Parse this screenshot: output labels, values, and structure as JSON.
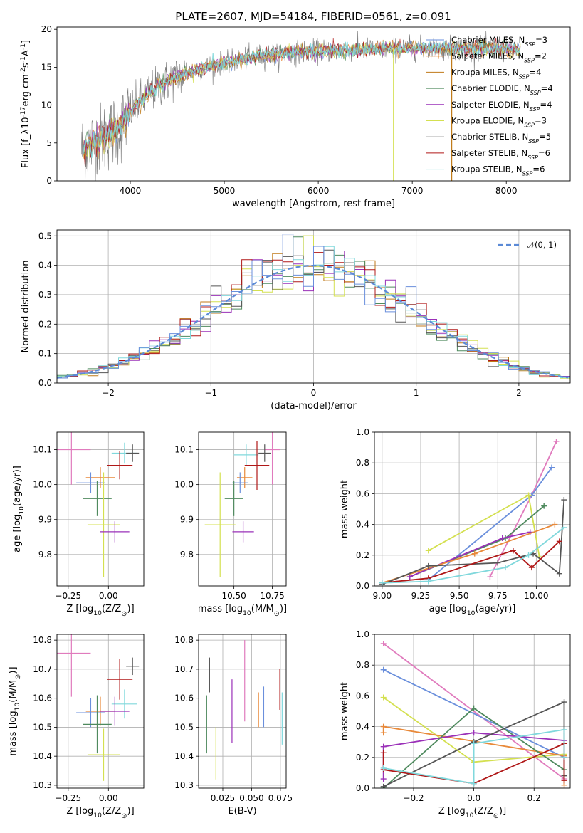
{
  "figure_title": "PLATE=2607, MJD=54184, FIBERID=0561, z=0.091",
  "colors": {
    "Chabrier MILES": "#6a8fdc",
    "Salpeter MILES": "#e8893a",
    "Kroupa MILES": "#c07a18",
    "Chabrier ELODIE": "#4f8a5e",
    "Salpeter ELODIE": "#9a30b8",
    "Kroupa ELODIE": "#d4e050",
    "Chabrier STELIB": "#555555",
    "Salpeter STELIB": "#b01818",
    "Kroupa STELIB": "#80d8dc",
    "Pink": "#e07bbd",
    "MILES2": "#6a8fdc",
    "normal": "#5b8ad6"
  },
  "chart_data": [
    {
      "id": "spectrum",
      "type": "line",
      "xlabel": "wavelength [Angstrom, rest frame]",
      "ylabel": "Flux [f_λ10^-17 erg cm^-2 s^-1 A^-1]",
      "xlim": [
        3220,
        8680
      ],
      "ylim": [
        0,
        20.3
      ],
      "xticks": [
        4000,
        5000,
        6000,
        7000,
        8000
      ],
      "yticks": [
        0,
        5,
        10,
        15,
        20
      ],
      "grid": false,
      "legend_position": "right",
      "legend": [
        {
          "name": "Chabrier MILES",
          "nssp": "3"
        },
        {
          "name": "Salpeter MILES",
          "nssp": "2"
        },
        {
          "name": "Kroupa MILES",
          "nssp": "4"
        },
        {
          "name": "Chabrier ELODIE",
          "nssp": "4"
        },
        {
          "name": "Salpeter ELODIE",
          "nssp": "4"
        },
        {
          "name": "Kroupa ELODIE",
          "nssp": "3"
        },
        {
          "name": "Chabrier STELIB",
          "nssp": "5"
        },
        {
          "name": "Salpeter STELIB",
          "nssp": "6"
        },
        {
          "name": "Kroupa STELIB",
          "nssp": "6"
        }
      ],
      "continuum": {
        "x": [
          3500,
          3700,
          3900,
          4000,
          4150,
          4300,
          4500,
          4700,
          4900,
          5100,
          5300,
          5500,
          5800,
          6100,
          6400,
          6700,
          7000,
          7300,
          7600,
          7900,
          8100
        ],
        "y": [
          4.2,
          5.6,
          7.2,
          9.2,
          11.0,
          12.5,
          13.8,
          14.6,
          15.3,
          15.8,
          16.3,
          16.7,
          17.0,
          17.2,
          17.3,
          17.4,
          17.5,
          17.5,
          17.5,
          17.4,
          17.3
        ]
      },
      "glitches": [
        {
          "x": 6800,
          "ymin": 0,
          "ymax": 17.5,
          "series": "Kroupa ELODIE"
        },
        {
          "x": 7420,
          "ymin": 0,
          "ymax": 17.5,
          "series": "Kroupa MILES"
        }
      ]
    },
    {
      "id": "residuals",
      "type": "histogram",
      "xlabel": "(data-model)/error",
      "ylabel": "Normed distribution",
      "xlim": [
        -2.5,
        2.5
      ],
      "ylim": [
        0,
        0.52
      ],
      "xticks": [
        -2,
        -1,
        0,
        1,
        2
      ],
      "yticks": [
        0,
        0.1,
        0.2,
        0.3,
        0.4,
        0.5
      ],
      "grid": true,
      "legend_position": "top-right",
      "legend": [
        {
          "name": "𝒩(0, 1)"
        }
      ],
      "bin_width": 0.1
    },
    {
      "id": "age_vs_Z",
      "type": "errorbar",
      "xlabel": "Z [log10(Z/Z⊙)]",
      "ylabel": "age  [log10(age/yr)]",
      "xlim": [
        -0.32,
        0.22
      ],
      "ylim": [
        9.71,
        10.15
      ],
      "xticks": [
        -0.25,
        0.0
      ],
      "yticks": [
        9.8,
        9.9,
        10.0,
        10.1
      ],
      "grid": true,
      "points": [
        {
          "series": "Pink",
          "x": -0.23,
          "xerr": 0.12,
          "y": 10.1,
          "yerr": 0.1
        },
        {
          "series": "Kroupa STELIB",
          "x": 0.1,
          "xerr": 0.08,
          "y": 10.09,
          "yerr": 0.03
        },
        {
          "series": "Chabrier STELIB",
          "x": 0.15,
          "xerr": 0.04,
          "y": 10.09,
          "yerr": 0.025
        },
        {
          "series": "Salpeter STELIB",
          "x": 0.07,
          "xerr": 0.08,
          "y": 10.055,
          "yerr": 0.04
        },
        {
          "series": "Salpeter MILES",
          "x": -0.05,
          "xerr": 0.09,
          "y": 10.02,
          "yerr": 0.03
        },
        {
          "series": "MILES2",
          "x": -0.11,
          "xerr": 0.09,
          "y": 10.005,
          "yerr": 0.03
        },
        {
          "series": "Chabrier ELODIE",
          "x": -0.07,
          "xerr": 0.09,
          "y": 9.96,
          "yerr": 0.05
        },
        {
          "series": "Kroupa ELODIE",
          "x": -0.03,
          "xerr": 0.1,
          "y": 9.885,
          "yerr": 0.15
        },
        {
          "series": "Salpeter ELODIE",
          "x": 0.04,
          "xerr": 0.09,
          "y": 9.865,
          "yerr": 0.03
        }
      ]
    },
    {
      "id": "age_vs_mass",
      "type": "errorbar",
      "xlabel": "mass [log10(M/M⊙)]",
      "ylabel": "",
      "xlim": [
        10.27,
        10.84
      ],
      "ylim": [
        9.71,
        10.15
      ],
      "xticks": [
        10.5,
        10.75
      ],
      "yticks": [
        9.8,
        9.9,
        10.0,
        10.1
      ],
      "grid": true,
      "points": [
        {
          "series": "Pink",
          "x": 10.75,
          "xerr": 0.05,
          "y": 10.1,
          "yerr": 0.1
        },
        {
          "series": "Kroupa STELIB",
          "x": 10.58,
          "xerr": 0.08,
          "y": 10.085,
          "yerr": 0.03
        },
        {
          "series": "Chabrier STELIB",
          "x": 10.7,
          "xerr": 0.04,
          "y": 10.09,
          "yerr": 0.025
        },
        {
          "series": "Salpeter STELIB",
          "x": 10.65,
          "xerr": 0.08,
          "y": 10.055,
          "yerr": 0.07
        },
        {
          "series": "Salpeter MILES",
          "x": 10.57,
          "xerr": 0.05,
          "y": 10.02,
          "yerr": 0.03
        },
        {
          "series": "MILES2",
          "x": 10.54,
          "xerr": 0.05,
          "y": 10.005,
          "yerr": 0.03
        },
        {
          "series": "Chabrier ELODIE",
          "x": 10.5,
          "xerr": 0.06,
          "y": 9.96,
          "yerr": 0.05
        },
        {
          "series": "Kroupa ELODIE",
          "x": 10.41,
          "xerr": 0.1,
          "y": 9.885,
          "yerr": 0.15
        },
        {
          "series": "Salpeter ELODIE",
          "x": 10.56,
          "xerr": 0.07,
          "y": 9.865,
          "yerr": 0.03
        }
      ]
    },
    {
      "id": "weight_vs_age",
      "type": "line",
      "xlabel": "age  [log10(age/yr)]",
      "ylabel": "mass weight",
      "xlim": [
        8.95,
        10.22
      ],
      "ylim": [
        0,
        1.0
      ],
      "xticks": [
        9.0,
        9.25,
        9.5,
        9.75,
        10.0
      ],
      "yticks": [
        0,
        0.2,
        0.4,
        0.6,
        0.8,
        1.0
      ],
      "grid": true,
      "series": [
        {
          "name": "Pink",
          "x": [
            9.7,
            9.97,
            10.13
          ],
          "y": [
            0.06,
            0.59,
            0.94
          ]
        },
        {
          "name": "MILES2",
          "x": [
            9.3,
            9.97,
            10.1
          ],
          "y": [
            0.04,
            0.59,
            0.77
          ]
        },
        {
          "name": "Kroupa ELODIE",
          "x": [
            9.3,
            9.95,
            10.02
          ],
          "y": [
            0.23,
            0.59,
            0.19
          ]
        },
        {
          "name": "Chabrier ELODIE",
          "x": [
            9.18,
            9.8,
            10.05
          ],
          "y": [
            0.06,
            0.31,
            0.52
          ]
        },
        {
          "name": "Salpeter ELODIE",
          "x": [
            9.18,
            9.78,
            9.96
          ],
          "y": [
            0.06,
            0.31,
            0.35
          ]
        },
        {
          "name": "Salpeter MILES",
          "x": [
            9.0,
            9.6,
            10.12
          ],
          "y": [
            0.02,
            0.21,
            0.4
          ]
        },
        {
          "name": "Chabrier STELIB",
          "x": [
            9.0,
            9.3,
            9.75,
            9.98,
            10.15,
            10.18
          ],
          "y": [
            0.01,
            0.13,
            0.15,
            0.21,
            0.08,
            0.56
          ]
        },
        {
          "name": "Salpeter STELIB",
          "x": [
            9.0,
            9.3,
            9.85,
            9.97,
            10.15
          ],
          "y": [
            0.02,
            0.05,
            0.23,
            0.12,
            0.29
          ]
        },
        {
          "name": "Kroupa STELIB",
          "x": [
            9.0,
            9.3,
            9.8,
            9.95,
            10.18
          ],
          "y": [
            0.02,
            0.03,
            0.12,
            0.2,
            0.38
          ]
        }
      ]
    },
    {
      "id": "mass_vs_Z",
      "type": "errorbar",
      "xlabel": "Z [log10(Z/Z⊙)]",
      "ylabel": "mass [log10(M/M⊙)]",
      "xlim": [
        -0.32,
        0.22
      ],
      "ylim": [
        10.29,
        10.82
      ],
      "xticks": [
        -0.25,
        0.0
      ],
      "yticks": [
        10.3,
        10.4,
        10.5,
        10.6,
        10.7,
        10.8
      ],
      "grid": true,
      "points": [
        {
          "series": "Pink",
          "x": -0.23,
          "xerr": 0.12,
          "y": 10.755,
          "yerr": 0.15
        },
        {
          "series": "Chabrier STELIB",
          "x": 0.15,
          "xerr": 0.04,
          "y": 10.71,
          "yerr": 0.03
        },
        {
          "series": "Salpeter STELIB",
          "x": 0.07,
          "xerr": 0.08,
          "y": 10.665,
          "yerr": 0.07
        },
        {
          "series": "Kroupa STELIB",
          "x": 0.1,
          "xerr": 0.08,
          "y": 10.58,
          "yerr": 0.05
        },
        {
          "series": "Salpeter MILES",
          "x": -0.05,
          "xerr": 0.09,
          "y": 10.555,
          "yerr": 0.05
        },
        {
          "series": "MILES2",
          "x": -0.11,
          "xerr": 0.09,
          "y": 10.55,
          "yerr": 0.05
        },
        {
          "series": "Salpeter ELODIE",
          "x": 0.04,
          "xerr": 0.09,
          "y": 10.555,
          "yerr": 0.05
        },
        {
          "series": "Chabrier ELODIE",
          "x": -0.07,
          "xerr": 0.09,
          "y": 10.51,
          "yerr": 0.1
        },
        {
          "series": "Kroupa ELODIE",
          "x": -0.03,
          "xerr": 0.1,
          "y": 10.405,
          "yerr": 0.09
        }
      ]
    },
    {
      "id": "mass_vs_ebv",
      "type": "errorbar",
      "xlabel": "E(B-V)",
      "ylabel": "",
      "xlim": [
        0.004,
        0.08
      ],
      "ylim": [
        10.29,
        10.82
      ],
      "xticks": [
        0.025,
        0.05,
        0.075
      ],
      "yticks": [
        10.3,
        10.4,
        10.5,
        10.6,
        10.7,
        10.8
      ],
      "grid": true,
      "points": [
        {
          "series": "Chabrier ELODIE",
          "x": 0.011,
          "xerr": 0,
          "y": 10.51,
          "yerr": 0.1
        },
        {
          "series": "Chabrier STELIB",
          "x": 0.0135,
          "xerr": 0,
          "y": 10.68,
          "yerr": 0.06
        },
        {
          "series": "Kroupa ELODIE",
          "x": 0.019,
          "xerr": 0,
          "y": 10.41,
          "yerr": 0.09
        },
        {
          "series": "Salpeter ELODIE",
          "x": 0.033,
          "xerr": 0,
          "y": 10.555,
          "yerr": 0.11
        },
        {
          "series": "Pink",
          "x": 0.044,
          "xerr": 0,
          "y": 10.66,
          "yerr": 0.14
        },
        {
          "series": "Salpeter MILES",
          "x": 0.056,
          "xerr": 0,
          "y": 10.56,
          "yerr": 0.06
        },
        {
          "series": "MILES2",
          "x": 0.0605,
          "xerr": 0,
          "y": 10.57,
          "yerr": 0.07
        },
        {
          "series": "Salpeter STELIB",
          "x": 0.0745,
          "xerr": 0,
          "y": 10.63,
          "yerr": 0.07
        },
        {
          "series": "Kroupa STELIB",
          "x": 0.0765,
          "xerr": 0,
          "y": 10.53,
          "yerr": 0.09
        }
      ]
    },
    {
      "id": "weight_vs_Z",
      "type": "line",
      "xlabel": "Z [log10(Z/Z⊙)]",
      "ylabel": "mass weight",
      "xlim": [
        -0.33,
        0.32
      ],
      "ylim": [
        0,
        1.0
      ],
      "xticks": [
        -0.2,
        0.0,
        0.2
      ],
      "yticks": [
        0,
        0.2,
        0.4,
        0.6,
        0.8,
        1.0
      ],
      "grid": true,
      "series": [
        {
          "name": "Pink",
          "x": [
            -0.3,
            0.3
          ],
          "y": [
            0.94,
            0.06
          ]
        },
        {
          "name": "MILES2",
          "x": [
            -0.3,
            0.3
          ],
          "y": [
            0.77,
            0.2
          ]
        },
        {
          "name": "Kroupa ELODIE",
          "x": [
            -0.3,
            0.0,
            0.3
          ],
          "y": [
            0.59,
            0.17,
            0.22
          ]
        },
        {
          "name": "Salpeter MILES",
          "x": [
            -0.3,
            -0.3,
            0.3,
            0.3
          ],
          "y": [
            0.36,
            0.4,
            0.21,
            0.02
          ]
        },
        {
          "name": "Chabrier ELODIE",
          "x": [
            -0.3,
            0.0,
            0.3
          ],
          "y": [
            0.0,
            0.52,
            0.12
          ]
        },
        {
          "name": "Salpeter ELODIE",
          "x": [
            -0.3,
            -0.3,
            0.0,
            0.3
          ],
          "y": [
            0.06,
            0.27,
            0.36,
            0.31
          ]
        },
        {
          "name": "Chabrier STELIB",
          "x": [
            -0.3,
            0.0,
            0.0,
            0.3,
            0.3
          ],
          "y": [
            0.01,
            0.3,
            0.3,
            0.56,
            0.08
          ]
        },
        {
          "name": "Salpeter STELIB",
          "x": [
            -0.3,
            -0.3,
            0.0,
            0.3,
            0.3
          ],
          "y": [
            0.23,
            0.12,
            0.03,
            0.29,
            0.05
          ]
        },
        {
          "name": "Kroupa STELIB",
          "x": [
            -0.3,
            0.0,
            0.0,
            0.3,
            0.3
          ],
          "y": [
            0.13,
            0.03,
            0.29,
            0.38,
            0.2
          ]
        }
      ]
    }
  ]
}
